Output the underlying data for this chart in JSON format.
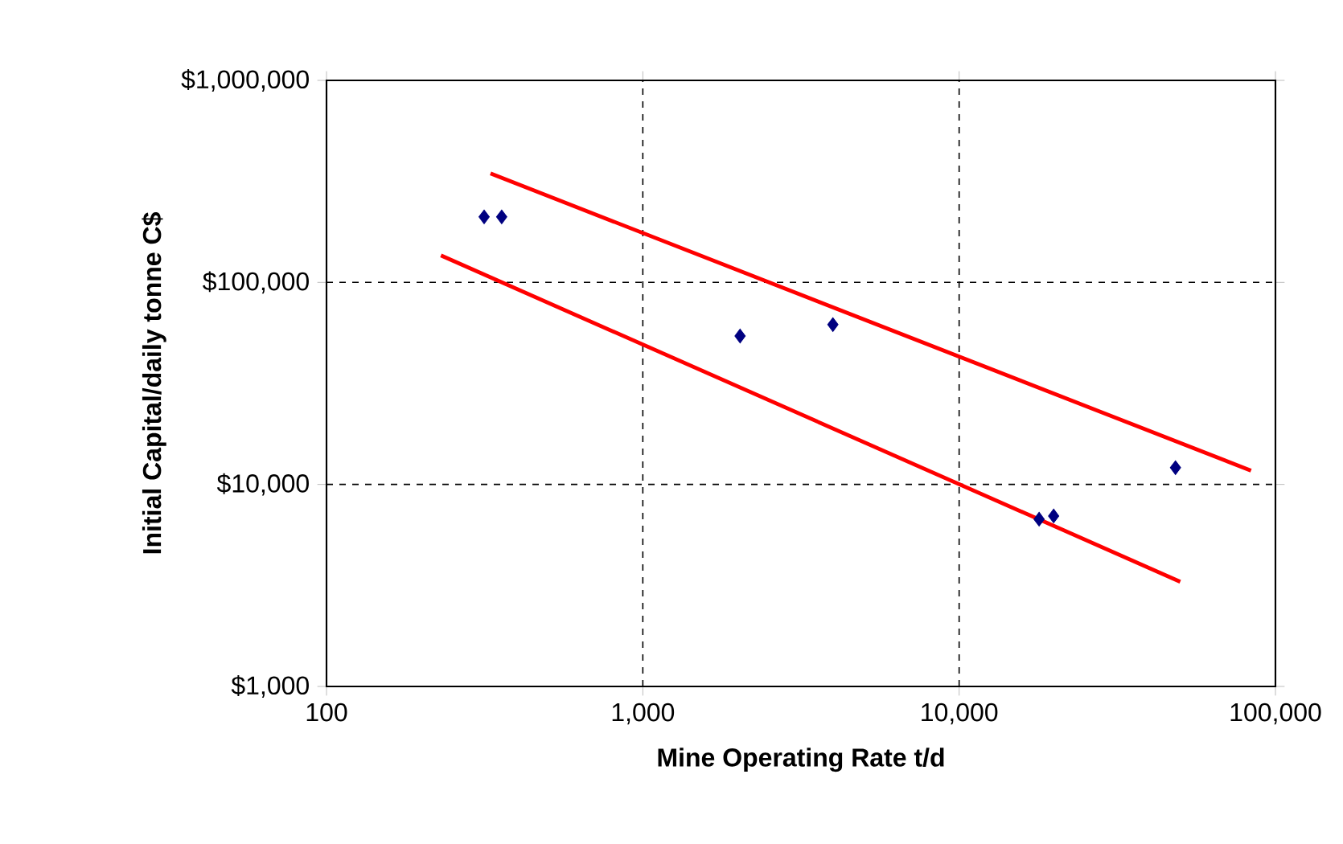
{
  "chart_data": {
    "type": "scatter",
    "xlabel": "Mine Operating Rate t/d",
    "ylabel": "Initial Capital/daily tonne C$",
    "log": "xy",
    "grid": true,
    "xlim": [
      100,
      100000
    ],
    "ylim": [
      1000,
      1000000
    ],
    "xticks": [
      100,
      {
        "value": 1000,
        "label": "1,000"
      },
      {
        "value": 10000,
        "label": "10,000"
      },
      {
        "value": 100000,
        "label": "100,000"
      }
    ],
    "yticks": [
      {
        "value": 1000,
        "label": "$1,000"
      },
      {
        "value": 10000,
        "label": "$10,000"
      },
      {
        "value": 100000,
        "label": "$100,000"
      },
      {
        "value": 1000000,
        "label": "$1,000,000"
      }
    ],
    "series": [
      {
        "color": "#000080",
        "marker": "diamond",
        "x": [
          315,
          358,
          2030,
          3990,
          17900,
          19900,
          48300
        ],
        "values": [
          211000,
          211000,
          54300,
          61800,
          6730,
          6980,
          12100
        ]
      },
      {
        "type": "line",
        "color": "#ff0000",
        "marker": "none",
        "line_style": "solid",
        "x": [
          330,
          83700
        ],
        "values": [
          346000,
          11700
        ]
      },
      {
        "type": "line",
        "color": "#ff0000",
        "marker": "none",
        "line_style": "solid",
        "x": [
          230,
          50000
        ],
        "values": [
          136000,
          3300
        ]
      }
    ]
  }
}
